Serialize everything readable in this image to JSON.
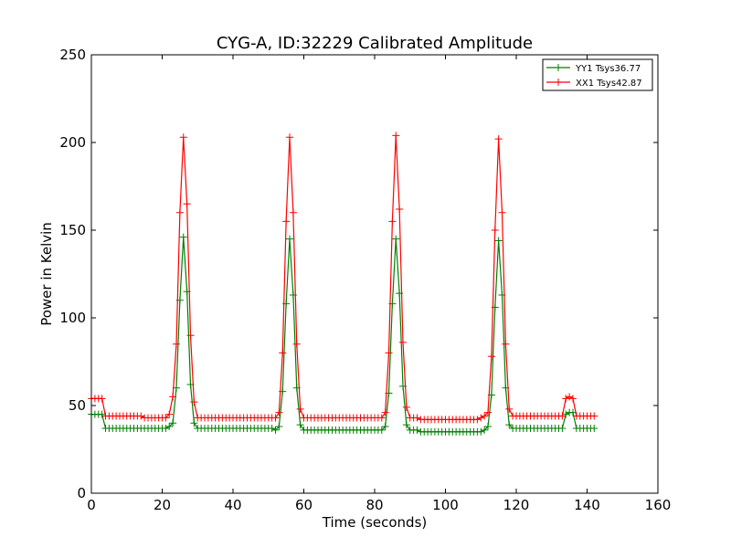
{
  "chart_data": {
    "type": "line",
    "title": "CYG-A, ID:32229 Calibrated Amplitude",
    "xlabel": "Time (seconds)",
    "ylabel": "Power in Kelvin",
    "xlim": [
      0,
      160
    ],
    "ylim": [
      0,
      250
    ],
    "xticks": [
      0,
      20,
      40,
      60,
      80,
      100,
      120,
      140,
      160
    ],
    "yticks": [
      0,
      50,
      100,
      150,
      200,
      250
    ],
    "legend_position": "top-right",
    "marker": "+",
    "series": [
      {
        "name": "YY1 Tsys36.77",
        "color": "#008000",
        "x": [
          0,
          1,
          2,
          3,
          4,
          5,
          6,
          7,
          8,
          9,
          10,
          11,
          12,
          13,
          14,
          15,
          16,
          17,
          18,
          19,
          20,
          21,
          22,
          23,
          24,
          25,
          26,
          27,
          28,
          29,
          30,
          31,
          32,
          33,
          34,
          35,
          36,
          37,
          38,
          39,
          40,
          41,
          42,
          43,
          44,
          45,
          46,
          47,
          48,
          49,
          50,
          51,
          52,
          53,
          54,
          55,
          56,
          57,
          58,
          59,
          60,
          61,
          62,
          63,
          64,
          65,
          66,
          67,
          68,
          69,
          70,
          71,
          72,
          73,
          74,
          75,
          76,
          77,
          78,
          79,
          80,
          81,
          82,
          83,
          84,
          85,
          86,
          87,
          88,
          89,
          90,
          91,
          92,
          93,
          94,
          95,
          96,
          97,
          98,
          99,
          100,
          101,
          102,
          103,
          104,
          105,
          106,
          107,
          108,
          109,
          110,
          111,
          112,
          113,
          114,
          115,
          116,
          117,
          118,
          119,
          120,
          121,
          122,
          123,
          124,
          125,
          126,
          127,
          128,
          129,
          130,
          131,
          132,
          133,
          134,
          135,
          136,
          137,
          138,
          139,
          140,
          141,
          142
        ],
        "y": [
          45,
          45,
          45,
          45,
          37,
          37,
          37,
          37,
          37,
          37,
          37,
          37,
          37,
          37,
          37,
          37,
          37,
          37,
          37,
          37,
          37,
          37,
          38,
          40,
          60,
          110,
          146,
          115,
          62,
          40,
          37,
          37,
          37,
          37,
          37,
          37,
          37,
          37,
          37,
          37,
          37,
          37,
          37,
          37,
          37,
          37,
          37,
          37,
          37,
          37,
          37,
          37,
          36,
          38,
          58,
          108,
          145,
          113,
          60,
          39,
          36,
          36,
          36,
          36,
          36,
          36,
          36,
          36,
          36,
          36,
          36,
          36,
          36,
          36,
          36,
          36,
          36,
          36,
          36,
          36,
          36,
          36,
          36,
          38,
          57,
          108,
          145,
          114,
          61,
          39,
          36,
          36,
          36,
          35,
          35,
          35,
          35,
          35,
          35,
          35,
          35,
          35,
          35,
          35,
          35,
          35,
          35,
          35,
          35,
          35,
          35,
          36,
          38,
          56,
          106,
          144,
          113,
          60,
          39,
          37,
          37,
          37,
          37,
          37,
          37,
          37,
          37,
          37,
          37,
          37,
          37,
          37,
          37,
          37,
          45,
          46,
          46,
          37,
          37,
          37,
          37,
          37,
          37
        ]
      },
      {
        "name": "XX1 Tsys42.87",
        "color": "#ff0000",
        "x": [
          0,
          1,
          2,
          3,
          4,
          5,
          6,
          7,
          8,
          9,
          10,
          11,
          12,
          13,
          14,
          15,
          16,
          17,
          18,
          19,
          20,
          21,
          22,
          23,
          24,
          25,
          26,
          27,
          28,
          29,
          30,
          31,
          32,
          33,
          34,
          35,
          36,
          37,
          38,
          39,
          40,
          41,
          42,
          43,
          44,
          45,
          46,
          47,
          48,
          49,
          50,
          51,
          52,
          53,
          54,
          55,
          56,
          57,
          58,
          59,
          60,
          61,
          62,
          63,
          64,
          65,
          66,
          67,
          68,
          69,
          70,
          71,
          72,
          73,
          74,
          75,
          76,
          77,
          78,
          79,
          80,
          81,
          82,
          83,
          84,
          85,
          86,
          87,
          88,
          89,
          90,
          91,
          92,
          93,
          94,
          95,
          96,
          97,
          98,
          99,
          100,
          101,
          102,
          103,
          104,
          105,
          106,
          107,
          108,
          109,
          110,
          111,
          112,
          113,
          114,
          115,
          116,
          117,
          118,
          119,
          120,
          121,
          122,
          123,
          124,
          125,
          126,
          127,
          128,
          129,
          130,
          131,
          132,
          133,
          134,
          135,
          136,
          137,
          138,
          139,
          140,
          141,
          142
        ],
        "y": [
          54,
          54,
          54,
          54,
          44,
          44,
          44,
          44,
          44,
          44,
          44,
          44,
          44,
          44,
          44,
          43,
          43,
          43,
          43,
          43,
          43,
          43,
          45,
          55,
          85,
          160,
          203,
          165,
          90,
          52,
          43,
          43,
          43,
          43,
          43,
          43,
          43,
          43,
          43,
          43,
          43,
          43,
          43,
          43,
          43,
          43,
          43,
          43,
          43,
          43,
          43,
          43,
          43,
          46,
          80,
          155,
          203,
          160,
          85,
          48,
          43,
          43,
          43,
          43,
          43,
          43,
          43,
          43,
          43,
          43,
          43,
          43,
          43,
          43,
          43,
          43,
          43,
          43,
          43,
          43,
          43,
          43,
          43,
          46,
          80,
          155,
          204,
          162,
          86,
          49,
          43,
          43,
          43,
          42,
          42,
          42,
          42,
          42,
          42,
          42,
          42,
          42,
          42,
          42,
          42,
          42,
          42,
          42,
          42,
          42,
          43,
          44,
          46,
          78,
          150,
          202,
          160,
          85,
          48,
          44,
          44,
          44,
          44,
          44,
          44,
          44,
          44,
          44,
          44,
          44,
          44,
          44,
          44,
          44,
          54,
          55,
          54,
          44,
          44,
          44,
          44,
          44,
          44
        ]
      }
    ]
  }
}
